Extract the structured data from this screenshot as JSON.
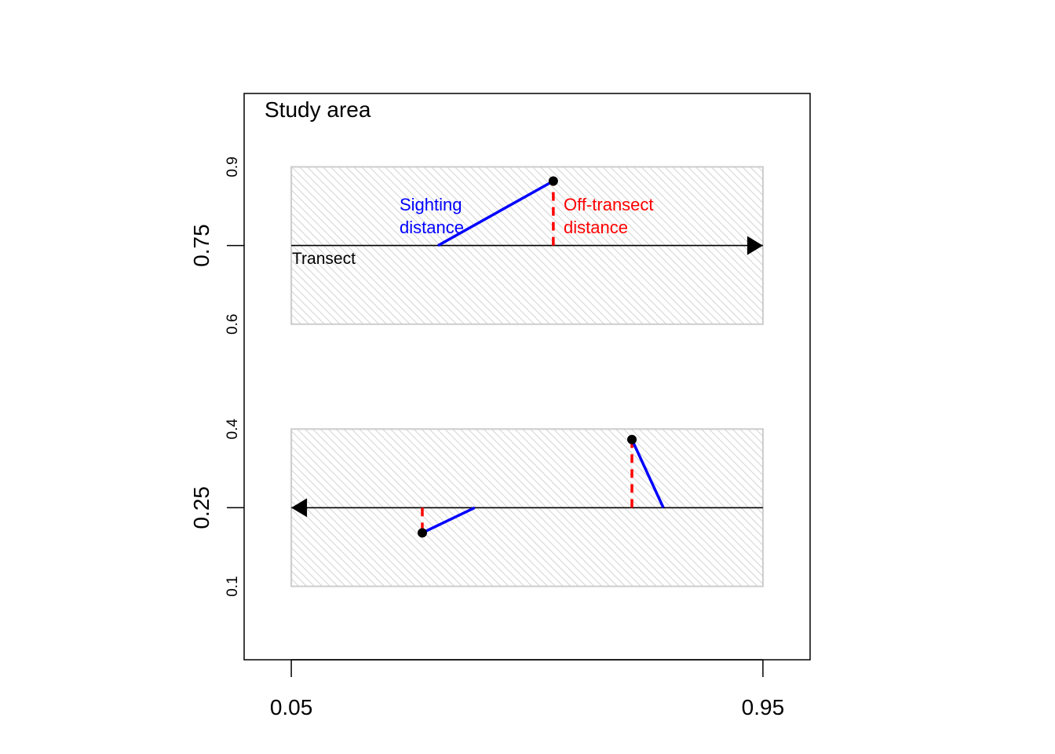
{
  "chart_data": {
    "type": "scatter",
    "title": "Study area",
    "xlim": [
      -0.04,
      1.04
    ],
    "ylim": [
      -0.04,
      1.04
    ],
    "x_ticks": [
      {
        "value": 0.05,
        "label": "0.05"
      },
      {
        "value": 0.95,
        "label": "0.95"
      }
    ],
    "y_ticks_major": [
      {
        "value": 0.25,
        "label": "0.25"
      },
      {
        "value": 0.75,
        "label": "0.75"
      }
    ],
    "y_ticks_minor": [
      {
        "value": 0.1,
        "label": "0.1"
      },
      {
        "value": 0.4,
        "label": "0.4"
      },
      {
        "value": 0.6,
        "label": "0.6"
      },
      {
        "value": 0.9,
        "label": "0.9"
      }
    ],
    "covered_strips": [
      {
        "name": "upper-strip",
        "x": [
          0.05,
          0.95
        ],
        "y": [
          0.6,
          0.9
        ]
      },
      {
        "name": "lower-strip",
        "x": [
          0.05,
          0.95
        ],
        "y": [
          0.1,
          0.4
        ]
      }
    ],
    "transects": [
      {
        "name": "upper-transect",
        "y": 0.75,
        "from": 0.05,
        "to": 0.95,
        "direction": "right"
      },
      {
        "name": "lower-transect",
        "y": 0.25,
        "from": 0.95,
        "to": 0.05,
        "direction": "left"
      }
    ],
    "sightings": [
      {
        "name": "sighting-1",
        "x": 0.55,
        "y": 0.873,
        "observer_x": 0.33,
        "transect_y": 0.75
      },
      {
        "name": "sighting-2",
        "x": 0.3,
        "y": 0.202,
        "observer_x": 0.4,
        "transect_y": 0.25
      },
      {
        "name": "sighting-3",
        "x": 0.7,
        "y": 0.38,
        "observer_x": 0.76,
        "transect_y": 0.25
      }
    ],
    "annotations": {
      "transect_label": "Transect",
      "sighting_label_line1": "Sighting",
      "sighting_label_line2": "distance",
      "offtransect_label_line1": "Off-transect",
      "offtransect_label_line2": "distance"
    },
    "colors": {
      "sighting": "#0000ff",
      "offtransect": "#ff0000",
      "strip_border": "#cccccc",
      "hatch": "#c8c8c8",
      "axis": "#000000"
    }
  }
}
